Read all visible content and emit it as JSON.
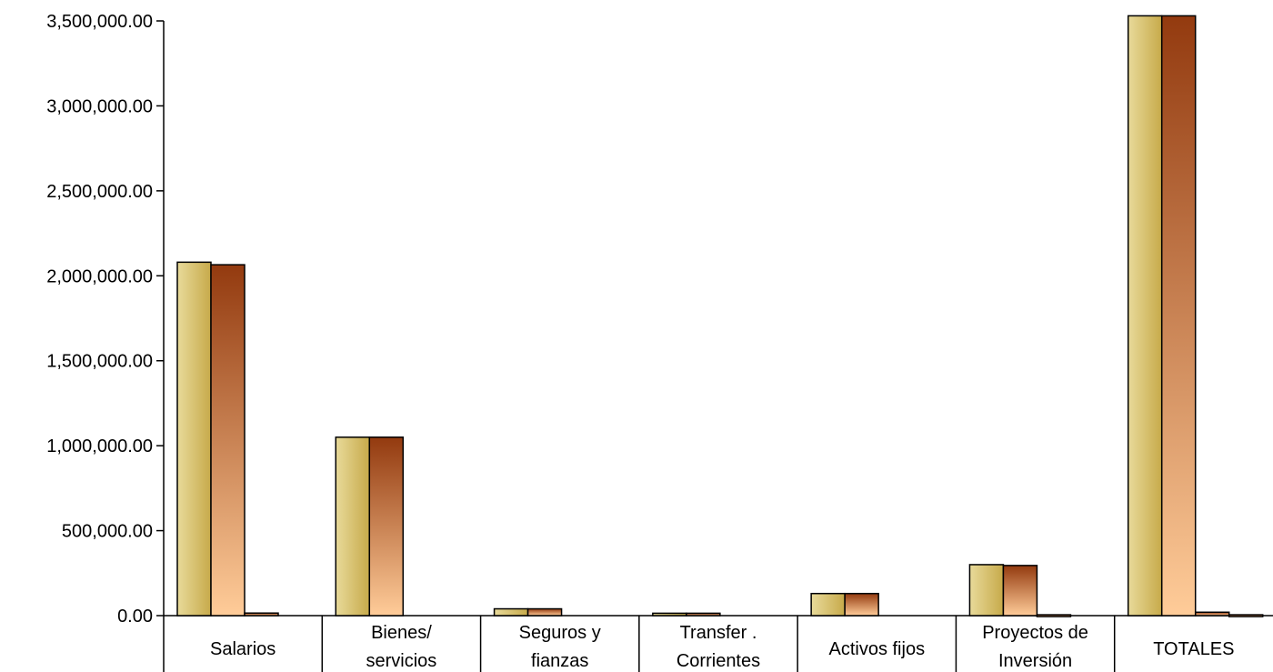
{
  "chart_data": {
    "type": "bar",
    "title": "",
    "xlabel": "",
    "ylabel": "",
    "ylim": [
      0,
      3500000
    ],
    "yticks": [
      0,
      500000,
      1000000,
      1500000,
      2000000,
      2500000,
      3000000,
      3500000
    ],
    "ytick_labels": [
      "0.00",
      "500,000.00",
      "1,000,000.00",
      "1,500,000.00",
      "2,000,000.00",
      "2,500,000.00",
      "3,000,000.00",
      "3,500,000.00"
    ],
    "categories": [
      [
        "Salarios"
      ],
      [
        "Bienes/",
        "servicios"
      ],
      [
        "Seguros y",
        "fianzas"
      ],
      [
        "Transfer .",
        "Corrientes"
      ],
      [
        "Activos fijos"
      ],
      [
        "Proyectos de",
        "Inversión"
      ],
      [
        "TOTALES"
      ]
    ],
    "series": [
      {
        "values": [
          2080000,
          1050000,
          40000,
          14000,
          130000,
          300000,
          3530000
        ],
        "colors": [
          "#e8da9a",
          "#c7aa4a"
        ]
      },
      {
        "values": [
          2065000,
          1050000,
          40000,
          14000,
          130000,
          295000,
          3530000
        ],
        "colors": [
          "#933a0f",
          "#ffcc99"
        ]
      },
      {
        "values": [
          15000,
          0,
          0,
          0,
          0,
          5000,
          20000
        ],
        "colors": [
          "#933a0f",
          "#ffcc99"
        ]
      },
      {
        "values": [
          0,
          0,
          0,
          0,
          0,
          0,
          5000
        ],
        "colors": [
          "#933a0f",
          "#ffcc99"
        ]
      }
    ],
    "grid": false,
    "legend": "none"
  }
}
